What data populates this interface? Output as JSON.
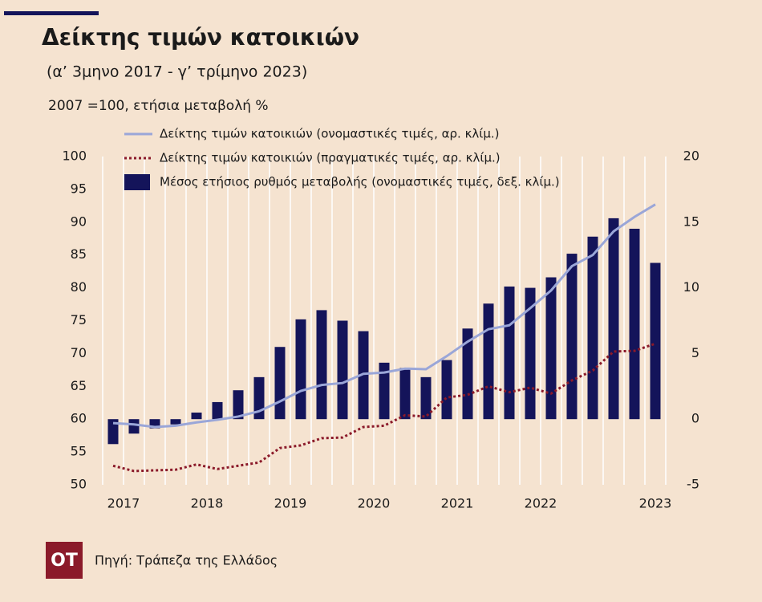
{
  "chart_data": {
    "type": "bar-line",
    "title": "Δείκτης τιμών κατοικιών",
    "subtitle": "(α’ 3μηνο 2017 - γ’ τρίμηνο 2023)",
    "note": "2007 =100, ετήσια μεταβολή %",
    "source": "Πηγή: Τράπεζα της Ελλάδος",
    "logo": "OT",
    "categories": [
      "2017",
      null,
      null,
      null,
      "2018",
      null,
      null,
      null,
      "2019",
      null,
      null,
      null,
      "2020",
      null,
      null,
      null,
      "2021",
      null,
      null,
      null,
      "2022",
      null,
      null,
      null,
      "2023",
      null,
      null
    ],
    "series": [
      {
        "name": "Δείκτης τιμών κατοικιών (ονομαστικές τιμές, αρ. κλίμ.)",
        "kind": "line",
        "color": "#9aa6d8",
        "axis": "y",
        "values": [
          59.4,
          59.2,
          58.8,
          59.0,
          59.5,
          59.9,
          60.4,
          61.2,
          62.7,
          64.3,
          65.2,
          65.5,
          66.9,
          67.1,
          67.7,
          67.6,
          69.6,
          71.8,
          73.7,
          74.3,
          76.9,
          79.6,
          83.3,
          85.0,
          88.6,
          90.8,
          92.7
        ]
      },
      {
        "name": "Δείκτης τιμών κατοικιών (πραγματικές τιμές, αρ. κλίμ.)",
        "kind": "dotted-line",
        "color": "#8b1a2a",
        "axis": "y",
        "values": [
          52.9,
          52.1,
          52.2,
          52.3,
          53.1,
          52.4,
          52.9,
          53.4,
          55.6,
          56.0,
          57.1,
          57.2,
          58.8,
          59.0,
          60.6,
          60.4,
          63.3,
          63.7,
          65.0,
          64.1,
          64.8,
          63.9,
          65.9,
          67.4,
          70.3,
          70.4,
          71.5
        ]
      },
      {
        "name": "Μέσος ετήσιος ρυθμός μεταβολής (ονομαστικές τιμές, δεξ. κλίμ.)",
        "kind": "bar",
        "color": "#14145a",
        "axis": "y2",
        "values": [
          -1.9,
          -1.1,
          -0.7,
          -0.4,
          0.5,
          1.3,
          2.2,
          3.2,
          5.5,
          7.6,
          8.3,
          7.5,
          6.7,
          4.3,
          3.9,
          3.2,
          4.5,
          6.9,
          8.8,
          10.1,
          10.0,
          10.8,
          12.6,
          13.9,
          15.3,
          14.5,
          11.9
        ]
      }
    ],
    "ylim": [
      50,
      100
    ],
    "yticks": [
      50,
      55,
      60,
      65,
      70,
      75,
      80,
      85,
      90,
      95,
      100
    ],
    "y2lim": [
      -5,
      20
    ],
    "y2ticks": [
      -5,
      0,
      5,
      10,
      15,
      20
    ]
  }
}
